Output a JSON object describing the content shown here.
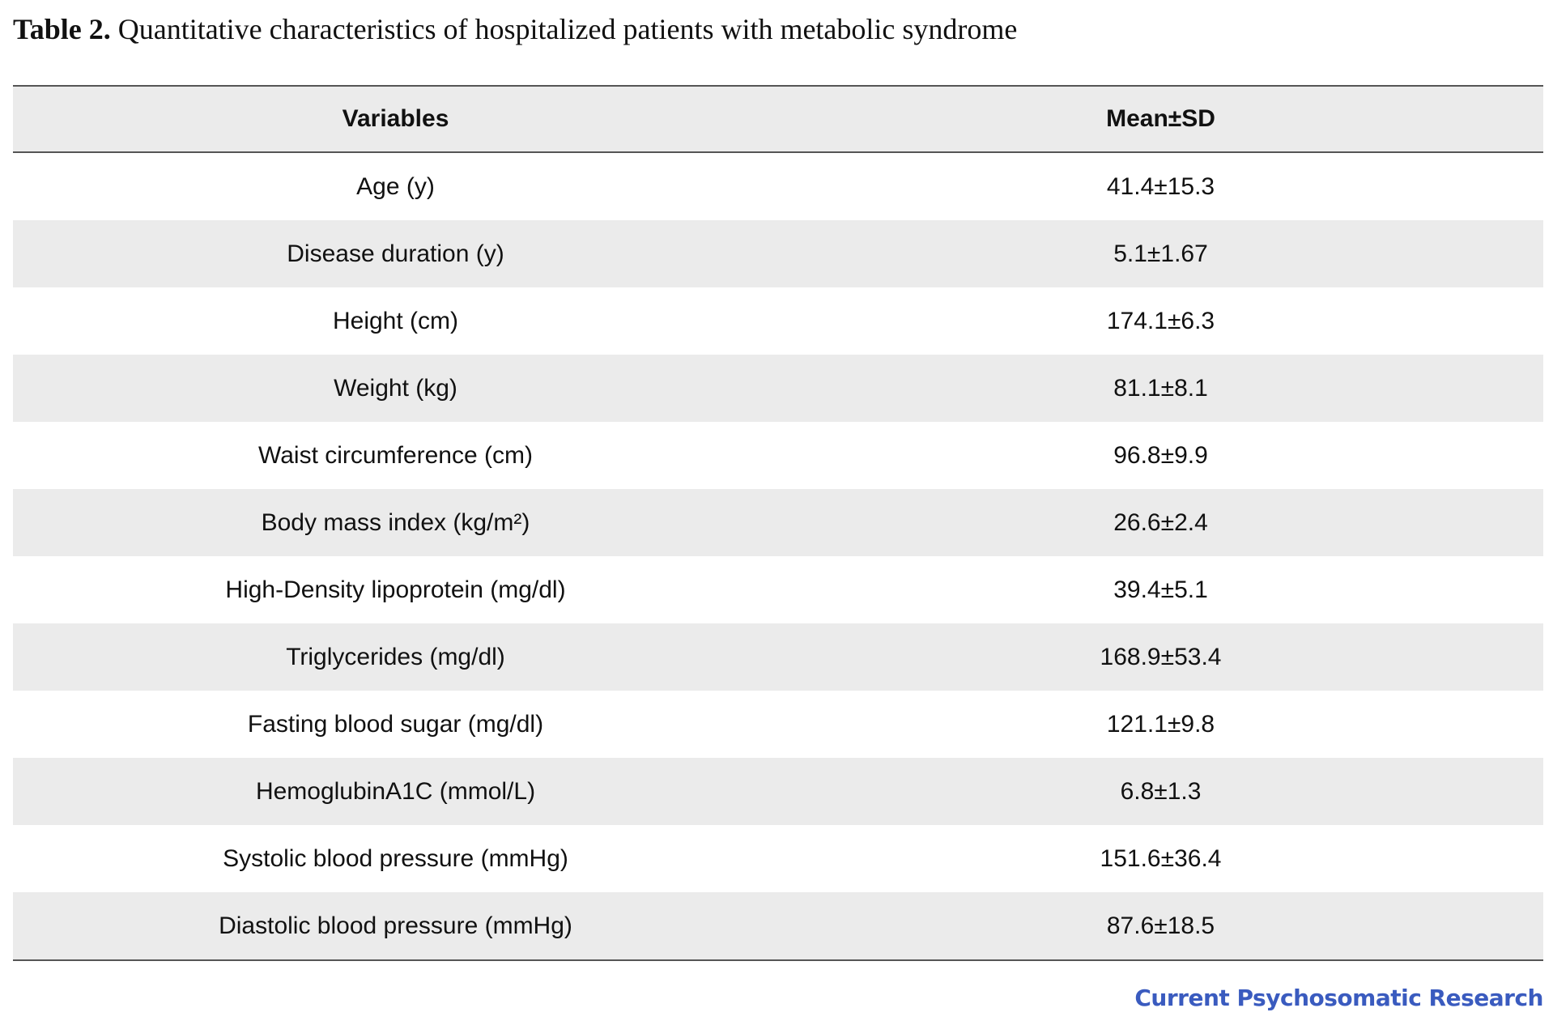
{
  "caption": {
    "label": "Table 2.",
    "text": "Quantitative characteristics of hospitalized patients with metabolic syndrome"
  },
  "table": {
    "headers": [
      "Variables",
      "Mean±SD"
    ],
    "rows": [
      [
        "Age (y)",
        "41.4±15.3"
      ],
      [
        "Disease duration (y)",
        "5.1±1.67"
      ],
      [
        "Height (cm)",
        "174.1±6.3"
      ],
      [
        "Weight (kg)",
        "81.1±8.1"
      ],
      [
        "Waist circumference (cm)",
        "96.8±9.9"
      ],
      [
        "Body mass index (kg/m²)",
        "26.6±2.4"
      ],
      [
        "High-Density lipoprotein (mg/dl)",
        "39.4±5.1"
      ],
      [
        "Triglycerides (mg/dl)",
        "168.9±53.4"
      ],
      [
        "Fasting blood sugar (mg/dl)",
        "121.1±9.8"
      ],
      [
        "HemoglubinA1C (mmol/L)",
        "6.8±1.3"
      ],
      [
        "Systolic blood pressure (mmHg)",
        "151.6±36.4"
      ],
      [
        "Diastolic blood pressure (mmHg)",
        "87.6±18.5"
      ]
    ]
  },
  "footer": {
    "brand": "Current Psychosomatic Research",
    "brand_color": "#3a5bbf"
  }
}
